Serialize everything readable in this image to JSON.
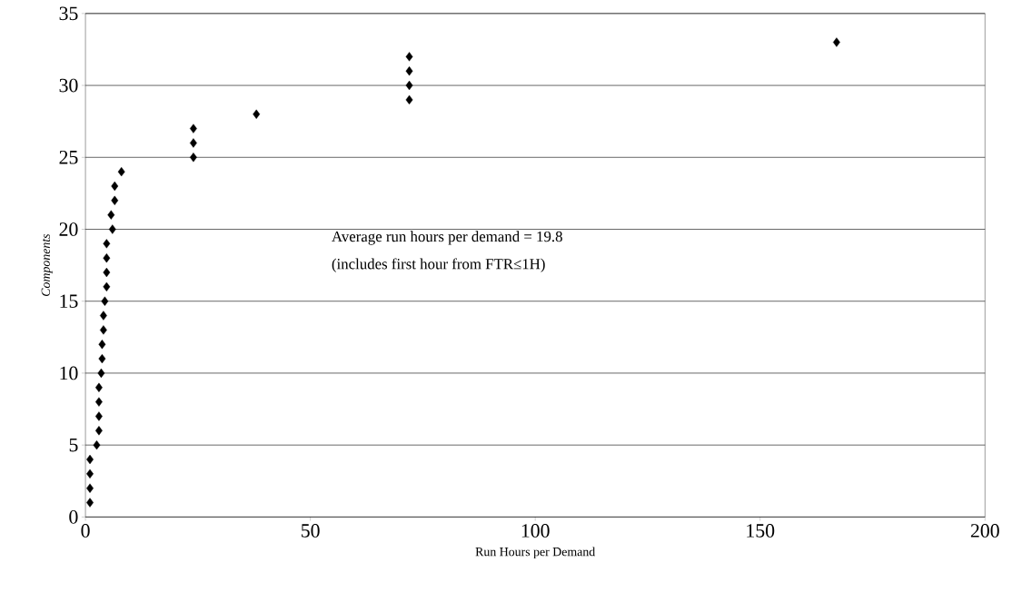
{
  "chart_data": {
    "type": "scatter",
    "xlabel": "Run Hours per Demand",
    "ylabel": "Components",
    "x": [
      1,
      1,
      1,
      1,
      2.5,
      3,
      3,
      3,
      3,
      3.5,
      3.7,
      3.7,
      4,
      4,
      4.3,
      4.7,
      4.7,
      4.7,
      4.7,
      6,
      5.7,
      6.5,
      6.5,
      8,
      24,
      24,
      24,
      38,
      72,
      72,
      72,
      72,
      167
    ],
    "series": [
      {
        "color": "#000000",
        "values": [
          1,
          2,
          3,
          4,
          5,
          6,
          7,
          8,
          9,
          10,
          11,
          12,
          13,
          14,
          15,
          16,
          17,
          18,
          19,
          20,
          21,
          22,
          23,
          24,
          25,
          26,
          27,
          28,
          29,
          30,
          31,
          32,
          33
        ]
      }
    ],
    "marker": "diamond",
    "grid": "y",
    "xlim": [
      0,
      200
    ],
    "xticks": [
      0,
      50,
      100,
      150,
      200
    ],
    "ylim": [
      0,
      35
    ],
    "yticks": [
      0,
      5,
      10,
      15,
      20,
      25,
      30,
      35
    ],
    "annotations": [
      "Average run hours per demand = 19.8",
      "(includes first hour from FTR≤1H)"
    ]
  }
}
